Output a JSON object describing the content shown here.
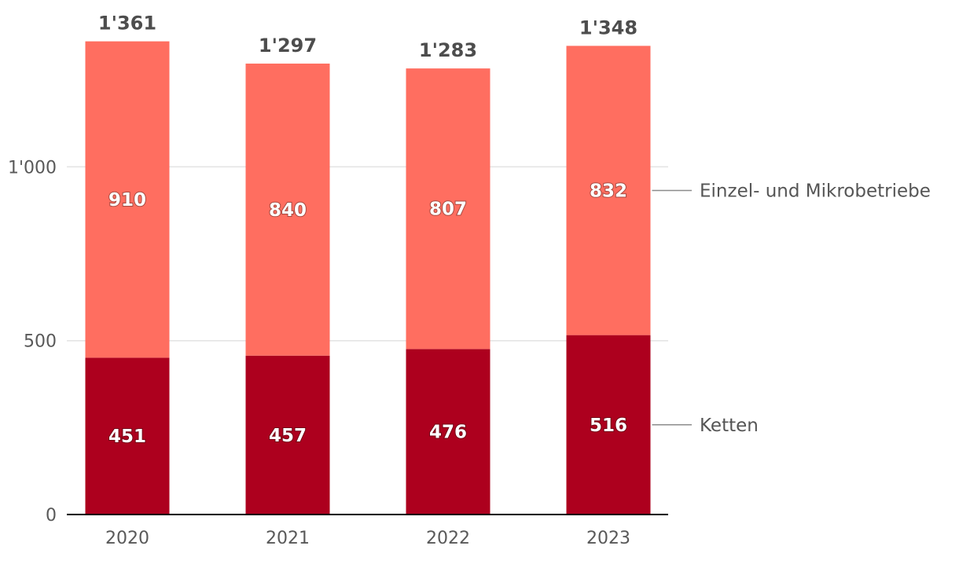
{
  "chart_data": {
    "type": "bar",
    "stacked": true,
    "categories": [
      "2020",
      "2021",
      "2022",
      "2023"
    ],
    "series": [
      {
        "name": "Ketten",
        "values": [
          451,
          457,
          476,
          516
        ],
        "color": "#ad001e"
      },
      {
        "name": "Einzel- und Mikrobetriebe",
        "values": [
          910,
          840,
          807,
          832
        ],
        "color": "#ff6e60"
      }
    ],
    "totals": [
      1361,
      1297,
      1283,
      1348
    ],
    "total_labels": [
      "1'361",
      "1'297",
      "1'283",
      "1'348"
    ],
    "yticks": [
      0,
      500,
      1000
    ],
    "ytick_labels": [
      "0",
      "500",
      "1'000"
    ],
    "ylim": [
      0,
      1400
    ],
    "grid": true,
    "legend": "right, inline labels",
    "title": "",
    "xlabel": "",
    "ylabel": ""
  }
}
